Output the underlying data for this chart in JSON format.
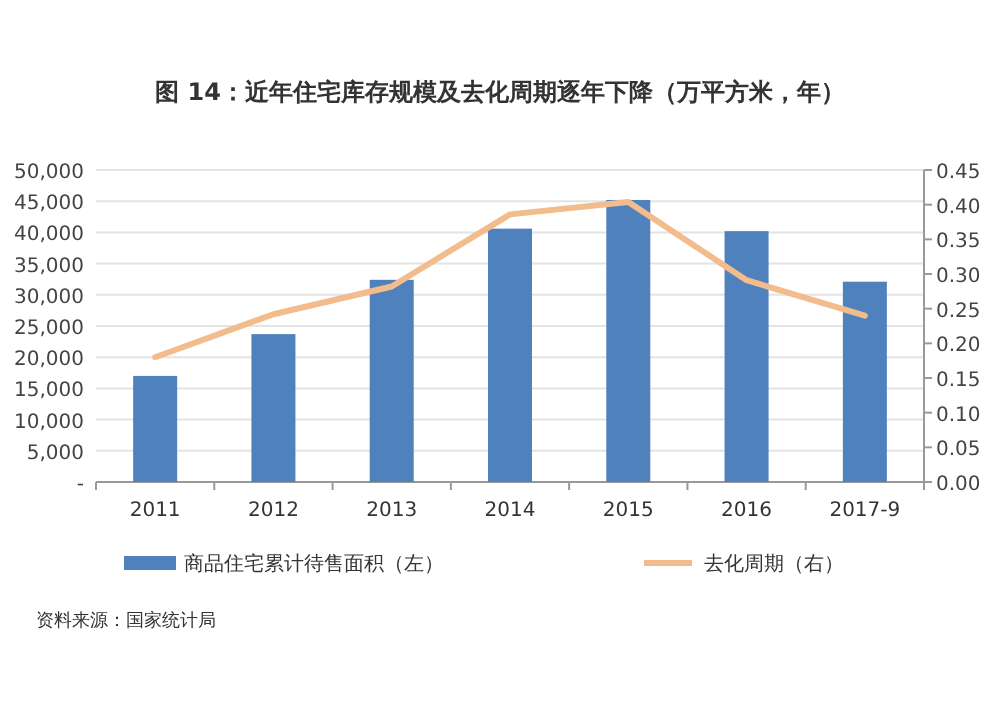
{
  "chart_data": {
    "type": "bar",
    "title": "图 14：近年住宅库存规模及去化周期逐年下降（万平方米，年）",
    "categories": [
      "2011",
      "2012",
      "2013",
      "2014",
      "2015",
      "2016",
      "2017-9"
    ],
    "series": [
      {
        "name": "商品住宅累计待售面积（左）",
        "color": "#4f81bd",
        "values": [
          17000,
          23700,
          32400,
          40600,
          45200,
          40200,
          32100
        ]
      },
      {
        "name": "去化周期（右）",
        "type": "line",
        "axis": "y2",
        "color": "#f2bc8c",
        "values": [
          0.18,
          0.242,
          0.282,
          0.386,
          0.404,
          0.291,
          0.24
        ]
      }
    ],
    "ylim": [
      0,
      50000
    ],
    "yticks": [
      {
        "value": 0,
        "label": "-"
      },
      {
        "value": 5000,
        "label": "5,000"
      },
      {
        "value": 10000,
        "label": "10,000"
      },
      {
        "value": 15000,
        "label": "15,000"
      },
      {
        "value": 20000,
        "label": "20,000"
      },
      {
        "value": 25000,
        "label": "25,000"
      },
      {
        "value": 30000,
        "label": "30,000"
      },
      {
        "value": 35000,
        "label": "35,000"
      },
      {
        "value": 40000,
        "label": "40,000"
      },
      {
        "value": 45000,
        "label": "45,000"
      },
      {
        "value": 50000,
        "label": "50,000"
      }
    ],
    "y2lim": [
      0,
      0.45
    ],
    "y2ticks": [
      {
        "value": 0,
        "label": "0.00"
      },
      {
        "value": 0.05,
        "label": "0.05"
      },
      {
        "value": 0.1,
        "label": "0.10"
      },
      {
        "value": 0.15,
        "label": "0.15"
      },
      {
        "value": 0.2,
        "label": "0.20"
      },
      {
        "value": 0.25,
        "label": "0.25"
      },
      {
        "value": 0.3,
        "label": "0.30"
      },
      {
        "value": 0.35,
        "label": "0.35"
      },
      {
        "value": 0.4,
        "label": "0.40"
      },
      {
        "value": 0.45,
        "label": "0.45"
      }
    ],
    "grid": "y",
    "legend": "bottom",
    "marker": "none",
    "line_style": "solid",
    "annotations": [
      "资料来源：国家统计局"
    ]
  }
}
